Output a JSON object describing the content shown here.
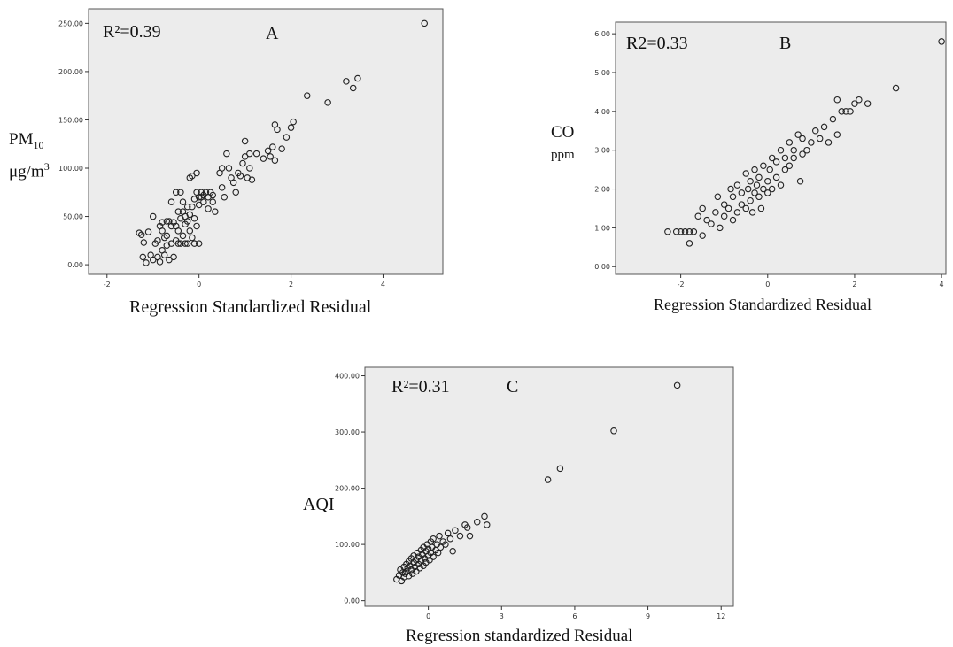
{
  "chart_data": [
    {
      "id": "A",
      "type": "scatter",
      "panel_letter": "A",
      "r2_text": "R²=0.39",
      "xlabel": "Regression Standardized Residual",
      "ylabel_main": "PM",
      "ylabel_sub": "10",
      "ylabel_unit": "μg/m",
      "ylabel_unit_sup": "3",
      "xlim": [
        -2.4,
        5.3
      ],
      "ylim": [
        -10,
        265
      ],
      "xticks": [
        -2,
        0,
        2,
        4
      ],
      "xtick_labels": [
        "-2",
        "0",
        "2",
        "4"
      ],
      "yticks": [
        0,
        50,
        100,
        150,
        200,
        250
      ],
      "ytick_labels": [
        "0.00",
        "50.00",
        "100.00",
        "150.00",
        "200.00",
        "250.00"
      ],
      "grid": false,
      "points": [
        [
          -1.3,
          33
        ],
        [
          -1.25,
          31
        ],
        [
          -1.2,
          23
        ],
        [
          -1.22,
          8
        ],
        [
          -1.15,
          2
        ],
        [
          -1.1,
          34
        ],
        [
          -1.05,
          10
        ],
        [
          -1.0,
          50
        ],
        [
          -1.0,
          5
        ],
        [
          -0.95,
          22
        ],
        [
          -0.9,
          25
        ],
        [
          -0.9,
          8
        ],
        [
          -0.85,
          40
        ],
        [
          -0.85,
          3
        ],
        [
          -0.8,
          44
        ],
        [
          -0.8,
          35
        ],
        [
          -0.8,
          15
        ],
        [
          -0.75,
          10
        ],
        [
          -0.75,
          28
        ],
        [
          -0.7,
          45
        ],
        [
          -0.7,
          30
        ],
        [
          -0.7,
          20
        ],
        [
          -0.65,
          45
        ],
        [
          -0.65,
          5
        ],
        [
          -0.6,
          40
        ],
        [
          -0.6,
          65
        ],
        [
          -0.6,
          22
        ],
        [
          -0.55,
          44
        ],
        [
          -0.55,
          8
        ],
        [
          -0.5,
          75
        ],
        [
          -0.5,
          40
        ],
        [
          -0.5,
          25
        ],
        [
          -0.45,
          55
        ],
        [
          -0.45,
          35
        ],
        [
          -0.45,
          22
        ],
        [
          -0.4,
          75
        ],
        [
          -0.4,
          48
        ],
        [
          -0.4,
          22
        ],
        [
          -0.35,
          55
        ],
        [
          -0.35,
          30
        ],
        [
          -0.35,
          65
        ],
        [
          -0.3,
          50
        ],
        [
          -0.3,
          22
        ],
        [
          -0.3,
          42
        ],
        [
          -0.25,
          60
        ],
        [
          -0.25,
          45
        ],
        [
          -0.25,
          22
        ],
        [
          -0.2,
          90
        ],
        [
          -0.2,
          52
        ],
        [
          -0.2,
          35
        ],
        [
          -0.15,
          92
        ],
        [
          -0.15,
          60
        ],
        [
          -0.15,
          28
        ],
        [
          -0.1,
          68
        ],
        [
          -0.1,
          48
        ],
        [
          -0.1,
          22
        ],
        [
          -0.05,
          95
        ],
        [
          -0.05,
          75
        ],
        [
          -0.05,
          40
        ],
        [
          0.0,
          70
        ],
        [
          0.0,
          62
        ],
        [
          0.0,
          22
        ],
        [
          0.05,
          75
        ],
        [
          0.05,
          70
        ],
        [
          0.1,
          72
        ],
        [
          0.1,
          65
        ],
        [
          0.15,
          75
        ],
        [
          0.2,
          70
        ],
        [
          0.2,
          58
        ],
        [
          0.25,
          75
        ],
        [
          0.3,
          72
        ],
        [
          0.3,
          65
        ],
        [
          0.35,
          55
        ],
        [
          0.45,
          95
        ],
        [
          0.5,
          100
        ],
        [
          0.5,
          80
        ],
        [
          0.55,
          70
        ],
        [
          0.6,
          115
        ],
        [
          0.65,
          100
        ],
        [
          0.7,
          90
        ],
        [
          0.75,
          85
        ],
        [
          0.8,
          75
        ],
        [
          0.85,
          95
        ],
        [
          0.9,
          92
        ],
        [
          0.95,
          105
        ],
        [
          1.0,
          128
        ],
        [
          1.0,
          112
        ],
        [
          1.05,
          90
        ],
        [
          1.1,
          115
        ],
        [
          1.1,
          100
        ],
        [
          1.15,
          88
        ],
        [
          1.25,
          115
        ],
        [
          1.4,
          110
        ],
        [
          1.5,
          118
        ],
        [
          1.55,
          112
        ],
        [
          1.6,
          122
        ],
        [
          1.65,
          108
        ],
        [
          1.65,
          145
        ],
        [
          1.7,
          140
        ],
        [
          1.8,
          120
        ],
        [
          1.9,
          132
        ],
        [
          2.0,
          142
        ],
        [
          2.05,
          148
        ],
        [
          2.35,
          175
        ],
        [
          2.8,
          168
        ],
        [
          3.2,
          190
        ],
        [
          3.35,
          183
        ],
        [
          3.45,
          193
        ],
        [
          4.9,
          250
        ]
      ]
    },
    {
      "id": "B",
      "type": "scatter",
      "panel_letter": "B",
      "r2_text": "R2=0.33",
      "xlabel": "Regression Standardized Residual",
      "ylabel_main": "CO",
      "ylabel_unit": "ppm",
      "xlim": [
        -3.5,
        4.1
      ],
      "ylim": [
        -0.2,
        6.3
      ],
      "xticks": [
        -2,
        0,
        2,
        4
      ],
      "xtick_labels": [
        "-2",
        "0",
        "2",
        "4"
      ],
      "yticks": [
        0,
        1,
        2,
        3,
        4,
        5,
        6
      ],
      "ytick_labels": [
        "0.00",
        "1.00",
        "2.00",
        "3.00",
        "4.00",
        "5.00",
        "6.00"
      ],
      "grid": false,
      "points": [
        [
          -2.3,
          0.9
        ],
        [
          -2.1,
          0.9
        ],
        [
          -2.0,
          0.9
        ],
        [
          -1.9,
          0.9
        ],
        [
          -1.8,
          0.6
        ],
        [
          -1.8,
          0.9
        ],
        [
          -1.7,
          0.9
        ],
        [
          -1.6,
          1.3
        ],
        [
          -1.5,
          0.8
        ],
        [
          -1.5,
          1.5
        ],
        [
          -1.4,
          1.2
        ],
        [
          -1.3,
          1.1
        ],
        [
          -1.2,
          1.4
        ],
        [
          -1.15,
          1.8
        ],
        [
          -1.1,
          1.0
        ],
        [
          -1.0,
          1.3
        ],
        [
          -1.0,
          1.6
        ],
        [
          -0.9,
          1.5
        ],
        [
          -0.85,
          2.0
        ],
        [
          -0.8,
          1.2
        ],
        [
          -0.8,
          1.8
        ],
        [
          -0.7,
          1.4
        ],
        [
          -0.7,
          2.1
        ],
        [
          -0.6,
          1.6
        ],
        [
          -0.6,
          1.9
        ],
        [
          -0.5,
          2.4
        ],
        [
          -0.5,
          1.5
        ],
        [
          -0.45,
          2.0
        ],
        [
          -0.4,
          1.7
        ],
        [
          -0.4,
          2.2
        ],
        [
          -0.35,
          1.4
        ],
        [
          -0.3,
          1.9
        ],
        [
          -0.3,
          2.5
        ],
        [
          -0.25,
          2.1
        ],
        [
          -0.2,
          1.8
        ],
        [
          -0.2,
          2.3
        ],
        [
          -0.15,
          1.5
        ],
        [
          -0.1,
          2.0
        ],
        [
          -0.1,
          2.6
        ],
        [
          0.0,
          2.2
        ],
        [
          0.0,
          1.9
        ],
        [
          0.05,
          2.5
        ],
        [
          0.1,
          2.8
        ],
        [
          0.1,
          2.0
        ],
        [
          0.2,
          2.3
        ],
        [
          0.2,
          2.7
        ],
        [
          0.3,
          2.1
        ],
        [
          0.3,
          3.0
        ],
        [
          0.4,
          2.5
        ],
        [
          0.4,
          2.8
        ],
        [
          0.5,
          2.6
        ],
        [
          0.5,
          3.2
        ],
        [
          0.6,
          2.8
        ],
        [
          0.6,
          3.0
        ],
        [
          0.7,
          3.4
        ],
        [
          0.75,
          2.2
        ],
        [
          0.8,
          2.9
        ],
        [
          0.8,
          3.3
        ],
        [
          0.9,
          3.0
        ],
        [
          1.0,
          3.2
        ],
        [
          1.1,
          3.5
        ],
        [
          1.2,
          3.3
        ],
        [
          1.3,
          3.6
        ],
        [
          1.4,
          3.2
        ],
        [
          1.5,
          3.8
        ],
        [
          1.6,
          3.4
        ],
        [
          1.6,
          4.3
        ],
        [
          1.7,
          4.0
        ],
        [
          1.8,
          4.0
        ],
        [
          1.9,
          4.0
        ],
        [
          2.0,
          4.2
        ],
        [
          2.1,
          4.3
        ],
        [
          2.3,
          4.2
        ],
        [
          2.95,
          4.6
        ],
        [
          4.0,
          5.8
        ]
      ]
    },
    {
      "id": "C",
      "type": "scatter",
      "panel_letter": "C",
      "r2_text": "R²=0.31",
      "xlabel": "Regression standardized Residual",
      "ylabel_main": "AQI",
      "xlim": [
        -2.6,
        12.5
      ],
      "ylim": [
        -10,
        415
      ],
      "xticks": [
        0,
        3,
        6,
        9,
        12
      ],
      "xtick_labels": [
        "0",
        "3",
        "6",
        "9",
        "12"
      ],
      "yticks": [
        0,
        100,
        200,
        300,
        400
      ],
      "ytick_labels": [
        "0.00",
        "100.00",
        "200.00",
        "300.00",
        "400.00"
      ],
      "grid": false,
      "points": [
        [
          -1.3,
          38
        ],
        [
          -1.2,
          45
        ],
        [
          -1.15,
          55
        ],
        [
          -1.1,
          35
        ],
        [
          -1.05,
          50
        ],
        [
          -1.0,
          60
        ],
        [
          -1.0,
          42
        ],
        [
          -0.95,
          48
        ],
        [
          -0.9,
          65
        ],
        [
          -0.9,
          52
        ],
        [
          -0.85,
          58
        ],
        [
          -0.8,
          44
        ],
        [
          -0.8,
          70
        ],
        [
          -0.75,
          62
        ],
        [
          -0.7,
          55
        ],
        [
          -0.7,
          75
        ],
        [
          -0.65,
          48
        ],
        [
          -0.6,
          68
        ],
        [
          -0.6,
          80
        ],
        [
          -0.55,
          60
        ],
        [
          -0.5,
          72
        ],
        [
          -0.5,
          52
        ],
        [
          -0.45,
          85
        ],
        [
          -0.4,
          65
        ],
        [
          -0.4,
          78
        ],
        [
          -0.35,
          58
        ],
        [
          -0.3,
          90
        ],
        [
          -0.3,
          70
        ],
        [
          -0.25,
          82
        ],
        [
          -0.2,
          62
        ],
        [
          -0.2,
          95
        ],
        [
          -0.15,
          75
        ],
        [
          -0.1,
          88
        ],
        [
          -0.1,
          68
        ],
        [
          -0.05,
          100
        ],
        [
          0.0,
          80
        ],
        [
          0.0,
          92
        ],
        [
          0.05,
          72
        ],
        [
          0.1,
          105
        ],
        [
          0.1,
          85
        ],
        [
          0.15,
          95
        ],
        [
          0.2,
          78
        ],
        [
          0.2,
          110
        ],
        [
          0.3,
          90
        ],
        [
          0.35,
          100
        ],
        [
          0.4,
          85
        ],
        [
          0.45,
          115
        ],
        [
          0.5,
          95
        ],
        [
          0.6,
          105
        ],
        [
          0.7,
          100
        ],
        [
          0.8,
          120
        ],
        [
          0.9,
          110
        ],
        [
          1.0,
          88
        ],
        [
          1.1,
          125
        ],
        [
          1.3,
          115
        ],
        [
          1.5,
          135
        ],
        [
          1.6,
          130
        ],
        [
          1.7,
          115
        ],
        [
          2.0,
          140
        ],
        [
          2.3,
          150
        ],
        [
          2.4,
          135
        ],
        [
          4.9,
          215
        ],
        [
          5.4,
          235
        ],
        [
          7.6,
          302
        ],
        [
          10.2,
          383
        ]
      ]
    }
  ]
}
